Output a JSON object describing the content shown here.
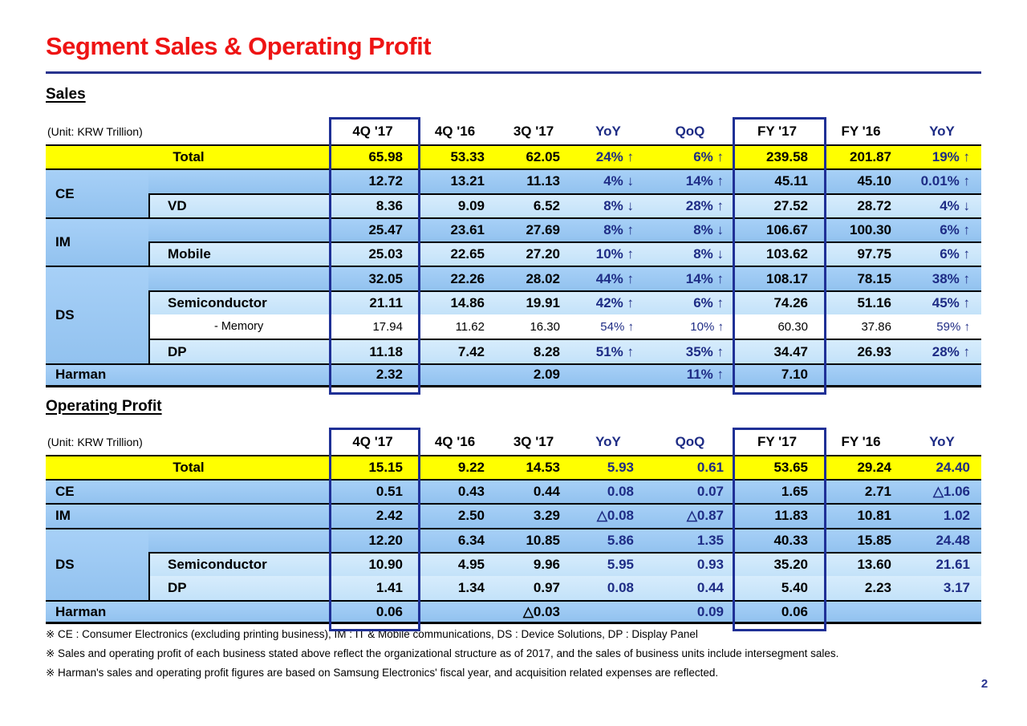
{
  "page": {
    "title": "Segment Sales & Operating Profit",
    "page_number": "2"
  },
  "unit_label": "(Unit: KRW Trillion)",
  "columns": [
    "4Q '17",
    "4Q '16",
    "3Q '17",
    "YoY",
    "QoQ",
    "FY '17",
    "FY '16",
    "YoY"
  ],
  "navy_column_indexes": [
    3,
    4,
    7
  ],
  "highlighted_columns": [
    "4Q '17",
    "FY '17"
  ],
  "sales": {
    "heading": "Sales",
    "rows": [
      {
        "label": "Total",
        "type": "total",
        "border_top": true,
        "values": [
          "65.98",
          "53.33",
          "62.05",
          "24% ↑",
          "6% ↑",
          "239.58",
          "201.87",
          "19% ↑"
        ]
      },
      {
        "label": "CE",
        "type": "main",
        "group_span": 2,
        "border_top": true,
        "values": [
          "12.72",
          "13.21",
          "11.13",
          "4% ↓",
          "14% ↑",
          "45.11",
          "45.10",
          "0.01% ↑"
        ]
      },
      {
        "label": "VD",
        "type": "sub",
        "border_top": true,
        "values": [
          "8.36",
          "9.09",
          "6.52",
          "8% ↓",
          "28% ↑",
          "27.52",
          "28.72",
          "4% ↓"
        ]
      },
      {
        "label": "IM",
        "type": "main",
        "group_span": 2,
        "border_top": true,
        "values": [
          "25.47",
          "23.61",
          "27.69",
          "8% ↑",
          "8% ↓",
          "106.67",
          "100.30",
          "6% ↑"
        ]
      },
      {
        "label": "Mobile",
        "type": "sub",
        "border_top": true,
        "values": [
          "25.03",
          "22.65",
          "27.20",
          "10% ↑",
          "8% ↓",
          "103.62",
          "97.75",
          "6% ↑"
        ]
      },
      {
        "label": "DS",
        "type": "main",
        "group_span": 4,
        "border_top": true,
        "values": [
          "32.05",
          "22.26",
          "28.02",
          "44% ↑",
          "14% ↑",
          "108.17",
          "78.15",
          "38% ↑"
        ]
      },
      {
        "label": "Semiconductor",
        "type": "sub",
        "border_top": true,
        "values": [
          "21.11",
          "14.86",
          "19.91",
          "42% ↑",
          "6% ↑",
          "74.26",
          "51.16",
          "45% ↑"
        ]
      },
      {
        "label": "- Memory",
        "type": "memo",
        "border_top": false,
        "values": [
          "17.94",
          "11.62",
          "16.30",
          "54% ↑",
          "10% ↑",
          "60.30",
          "37.86",
          "59% ↑"
        ]
      },
      {
        "label": "DP",
        "type": "sub",
        "border_top": true,
        "values": [
          "11.18",
          "7.42",
          "8.28",
          "51% ↑",
          "35% ↑",
          "34.47",
          "26.93",
          "28% ↑"
        ]
      },
      {
        "label": "Harman",
        "type": "main",
        "group_span": 1,
        "border_top": true,
        "values": [
          "2.32",
          "",
          "2.09",
          "",
          "11% ↑",
          "7.10",
          "",
          ""
        ]
      }
    ]
  },
  "operating_profit": {
    "heading": "Operating Profit",
    "rows": [
      {
        "label": "Total",
        "type": "total",
        "border_top": true,
        "values": [
          "15.15",
          "9.22",
          "14.53",
          "5.93",
          "0.61",
          "53.65",
          "29.24",
          "24.40"
        ]
      },
      {
        "label": "CE",
        "type": "main",
        "group_span": 1,
        "border_top": true,
        "values": [
          "0.51",
          "0.43",
          "0.44",
          "0.08",
          "0.07",
          "1.65",
          "2.71",
          "△1.06"
        ]
      },
      {
        "label": "IM",
        "type": "main",
        "group_span": 1,
        "border_top": true,
        "values": [
          "2.42",
          "2.50",
          "3.29",
          "△0.08",
          "△0.87",
          "11.83",
          "10.81",
          "1.02"
        ]
      },
      {
        "label": "DS",
        "type": "main",
        "group_span": 3,
        "border_top": true,
        "values": [
          "12.20",
          "6.34",
          "10.85",
          "5.86",
          "1.35",
          "40.33",
          "15.85",
          "24.48"
        ]
      },
      {
        "label": "Semiconductor",
        "type": "sub",
        "border_top": true,
        "values": [
          "10.90",
          "4.95",
          "9.96",
          "5.95",
          "0.93",
          "35.20",
          "13.60",
          "21.61"
        ]
      },
      {
        "label": "DP",
        "type": "sub",
        "border_top": false,
        "values": [
          "1.41",
          "1.34",
          "0.97",
          "0.08",
          "0.44",
          "5.40",
          "2.23",
          "3.17"
        ]
      },
      {
        "label": "Harman",
        "type": "main",
        "group_span": 1,
        "border_top": true,
        "values": [
          "0.06",
          "",
          "△0.03",
          "",
          "0.09",
          "0.06",
          "",
          ""
        ]
      }
    ]
  },
  "footnotes": [
    "※ CE : Consumer Electronics (excluding printing business),  IM : IT & Mobile communications,  DS : Device Solutions,  DP : Display Panel",
    "※ Sales and operating profit of each business stated above reflect the organizational structure  as of 2017, and the sales of business units include intersegment sales.",
    "※ Harman's sales and operating profit figures are based on Samsung Electronics' fiscal year, and acquisition related expenses are reflected."
  ],
  "colors": {
    "title_red": "#ee1414",
    "navy_text": "#1e2c85",
    "box_navy": "#1f3096",
    "rule_navy": "#28338e",
    "total_yellow": "#ffff00",
    "row_main_blue": "#9cc9f4",
    "row_sub_blue": "#cde8fb"
  }
}
